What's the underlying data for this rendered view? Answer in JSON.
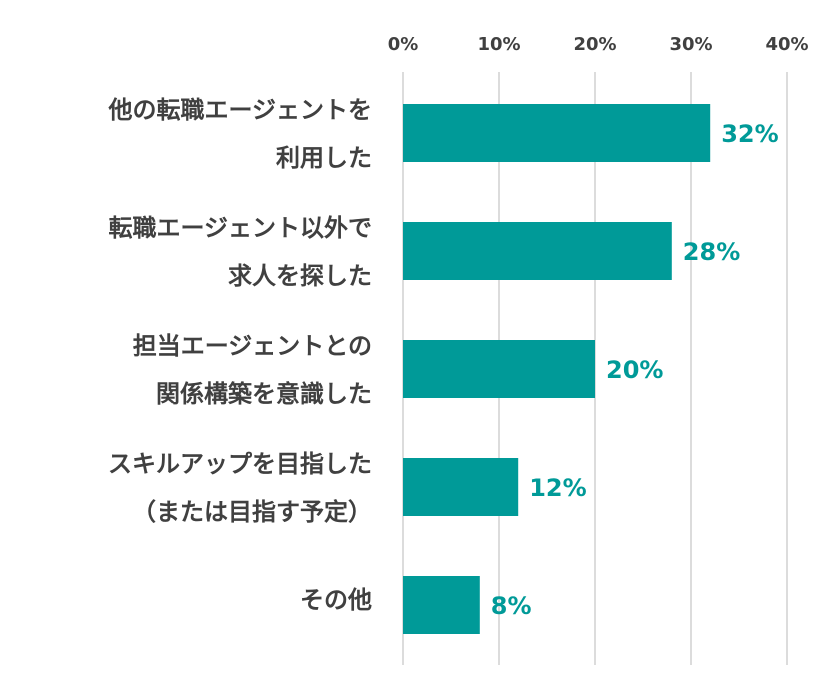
{
  "chart_data": {
    "type": "bar",
    "orientation": "horizontal",
    "title": "",
    "xlabel": "",
    "ylabel": "",
    "xlim": [
      0,
      40
    ],
    "x_ticks": [
      0,
      10,
      20,
      30,
      40
    ],
    "x_tick_labels": [
      "0%",
      "10%",
      "20%",
      "30%",
      "40%"
    ],
    "x_axis_position": "top",
    "grid": true,
    "legend": "none",
    "bar_color": "#009A98",
    "label_color": "#009A98",
    "categories": [
      [
        "他の転職エージェントを",
        "利用した"
      ],
      [
        "転職エージェント以外で",
        "求人を探した"
      ],
      [
        "担当エージェントとの",
        "関係構築を意識した"
      ],
      [
        "スキルアップを目指した",
        "（または目指す予定）"
      ],
      [
        "その他"
      ]
    ],
    "values": [
      32,
      28,
      20,
      12,
      8
    ],
    "data_labels": [
      "32%",
      "28%",
      "20%",
      "12%",
      "8%"
    ]
  }
}
